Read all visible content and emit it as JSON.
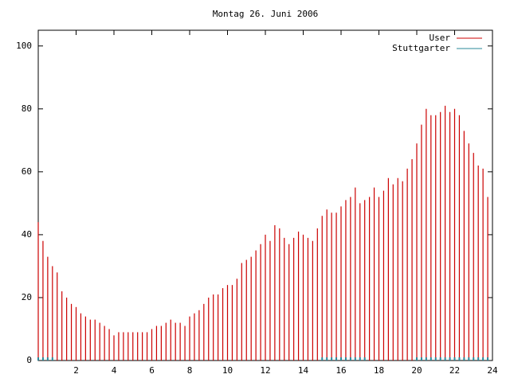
{
  "chart_data": {
    "type": "impulse",
    "title": "Montag 26. Juni 2006",
    "x": [
      0,
      0.25,
      0.5,
      0.75,
      1,
      1.25,
      1.5,
      1.75,
      2,
      2.25,
      2.5,
      2.75,
      3,
      3.25,
      3.5,
      3.75,
      4,
      4.25,
      4.5,
      4.75,
      5,
      5.25,
      5.5,
      5.75,
      6,
      6.25,
      6.5,
      6.75,
      7,
      7.25,
      7.5,
      7.75,
      8,
      8.25,
      8.5,
      8.75,
      9,
      9.25,
      9.5,
      9.75,
      10,
      10.25,
      10.5,
      10.75,
      11,
      11.25,
      11.5,
      11.75,
      12,
      12.25,
      12.5,
      12.75,
      13,
      13.25,
      13.5,
      13.75,
      14,
      14.25,
      14.5,
      14.75,
      15,
      15.25,
      15.5,
      15.75,
      16,
      16.25,
      16.5,
      16.75,
      17,
      17.25,
      17.5,
      17.75,
      18,
      18.25,
      18.5,
      18.75,
      19,
      19.25,
      19.5,
      19.75,
      20,
      20.25,
      20.5,
      20.75,
      21,
      21.25,
      21.5,
      21.75,
      22,
      22.25,
      22.5,
      22.75,
      23,
      23.25,
      23.5,
      23.75
    ],
    "series": [
      {
        "name": "User",
        "color": "#cc0000",
        "values": [
          44,
          38,
          33,
          30,
          28,
          22,
          20,
          18,
          17,
          15,
          14,
          13,
          13,
          12,
          11,
          10,
          8,
          9,
          9,
          9,
          9,
          9,
          9,
          9,
          10,
          11,
          11,
          12,
          13,
          12,
          12,
          11,
          14,
          15,
          16,
          18,
          20,
          21,
          21,
          23,
          24,
          24,
          26,
          31,
          32,
          33,
          35,
          37,
          40,
          38,
          43,
          42,
          39,
          37,
          39,
          41,
          40,
          39,
          38,
          42,
          46,
          48,
          47,
          47,
          49,
          51,
          52,
          55,
          50,
          51,
          52,
          55,
          52,
          54,
          58,
          56,
          58,
          57,
          61,
          64,
          69,
          75,
          80,
          78,
          78,
          79,
          81,
          79,
          80,
          78,
          73,
          69,
          66,
          62,
          61,
          52
        ]
      },
      {
        "name": "Stuttgarter",
        "color": "#2a8a9a",
        "values": [
          1,
          1,
          1,
          1,
          0,
          0,
          0,
          0,
          0,
          0,
          0,
          0,
          0,
          0,
          0,
          0,
          0,
          0,
          0,
          0,
          0,
          0,
          0,
          0,
          0,
          0,
          0,
          0,
          0,
          0,
          0,
          0,
          0,
          0,
          0,
          0,
          0,
          0,
          0,
          0,
          0,
          0,
          0,
          0,
          0,
          0,
          0,
          0,
          0,
          0,
          0,
          0,
          0,
          0,
          0,
          0,
          0,
          0,
          0,
          0,
          1,
          1,
          1,
          1,
          1,
          1,
          1,
          1,
          1,
          1,
          0,
          0,
          0,
          0,
          0,
          0,
          0,
          0,
          0,
          0,
          1,
          1,
          1,
          1,
          1,
          1,
          1,
          1,
          1,
          1,
          1,
          1,
          1,
          1,
          1,
          1
        ]
      }
    ],
    "xlim": [
      0,
      24
    ],
    "xticks": [
      2,
      4,
      6,
      8,
      10,
      12,
      14,
      16,
      18,
      20,
      22,
      24
    ],
    "ylim": [
      0,
      105
    ],
    "yticks": [
      0,
      20,
      40,
      60,
      80,
      100
    ],
    "legend": "top-right"
  }
}
